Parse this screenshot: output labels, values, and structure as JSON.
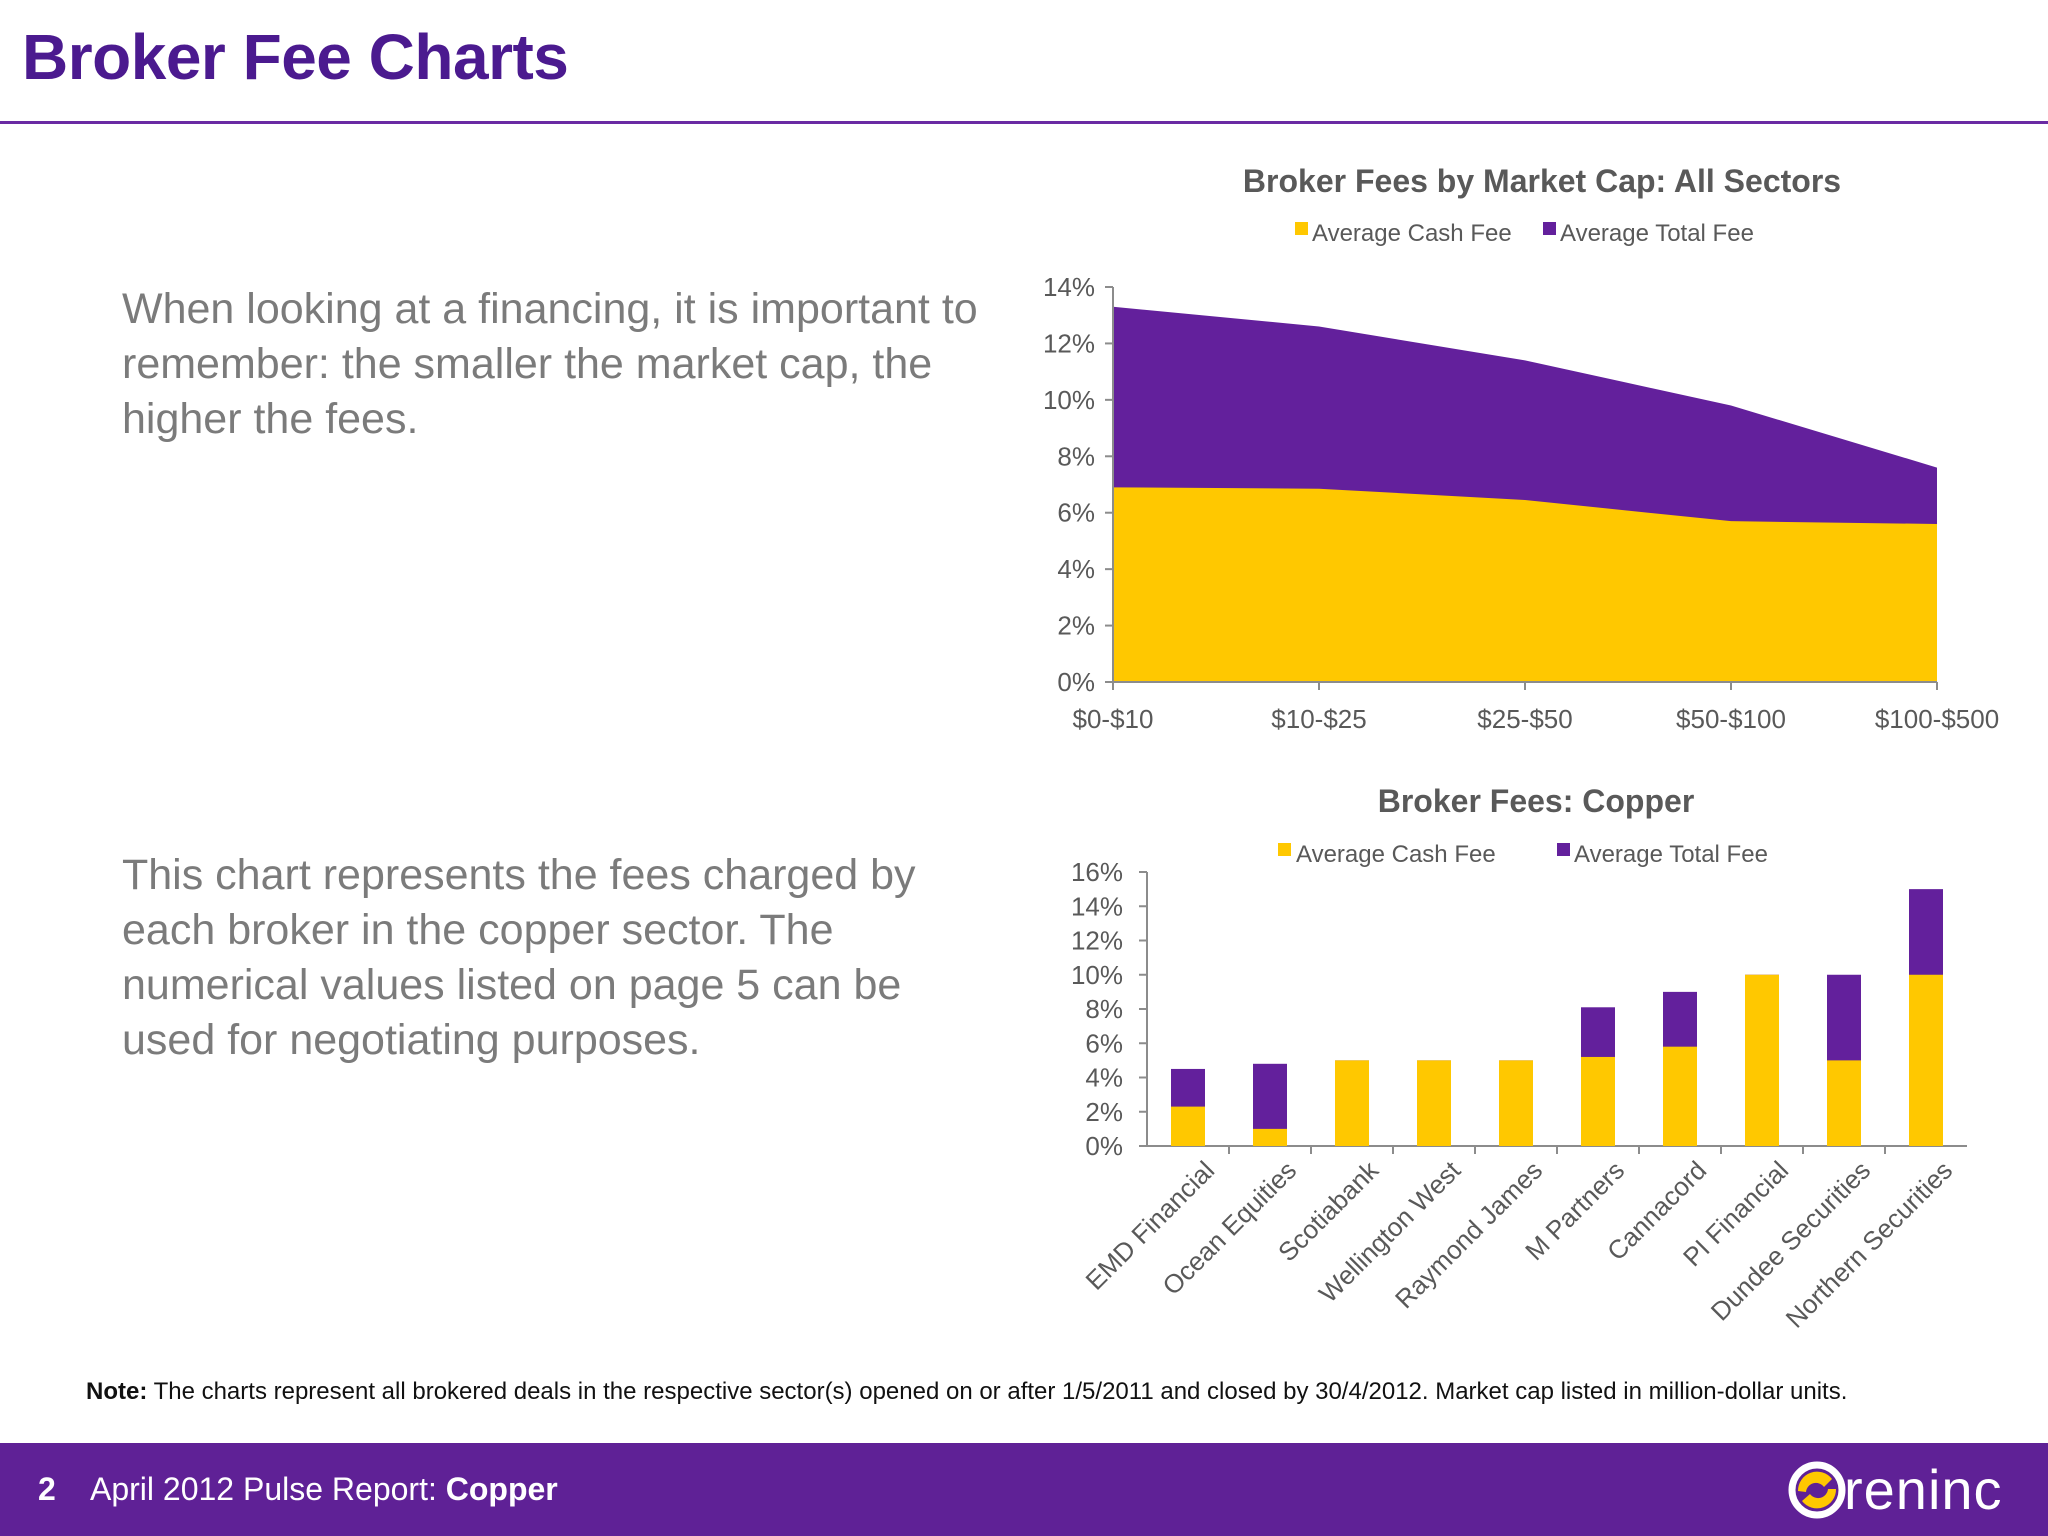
{
  "page": {
    "title": "Broker Fee Charts",
    "paragraph1": "When looking at a financing, it is important to remember: the smaller the market cap, the higher the fees.",
    "paragraph2": "This chart represents the fees charged by each broker in the copper sector. The numerical values listed on page 5 can be used for negotiating purposes.",
    "note_label": "Note:",
    "note_text": " The charts represent all brokered deals in the respective sector(s) opened on or after 1/5/2011 and closed by 30/4/2012. Market cap listed in million-dollar units."
  },
  "footer": {
    "page_number": "2",
    "report_prefix": "April 2012 Pulse Report: ",
    "report_sector": "Copper",
    "logo_text": "reninc"
  },
  "colors": {
    "cash": "#ffc800",
    "total": "#63209c",
    "title": "#4b1a8f",
    "footer": "#5f2196"
  },
  "chart_data": [
    {
      "type": "area",
      "title": "Broker Fees by Market Cap: All Sectors",
      "categories": [
        "$0-$10",
        "$10-$25",
        "$25-$50",
        "$50-$100",
        "$100-$500"
      ],
      "series": [
        {
          "name": "Average Cash Fee",
          "values": [
            6.9,
            6.85,
            6.45,
            5.7,
            5.6
          ]
        },
        {
          "name": "Average Total Fee",
          "values": [
            13.3,
            12.6,
            11.4,
            9.8,
            7.6
          ]
        }
      ],
      "yticks": [
        "0%",
        "2%",
        "4%",
        "6%",
        "8%",
        "10%",
        "12%",
        "14%"
      ],
      "ylim": [
        0,
        14
      ],
      "legend": "top"
    },
    {
      "type": "bar",
      "title": "Broker Fees: Copper",
      "categories": [
        "EMD Financial",
        "Ocean Equities",
        "Scotiabank",
        "Wellington West",
        "Raymond James",
        "M Partners",
        "Cannacord",
        "PI Financial",
        "Dundee Securities",
        "Northern Securities"
      ],
      "series": [
        {
          "name": "Average Cash Fee",
          "values": [
            2.3,
            1.0,
            5.0,
            5.0,
            5.0,
            5.2,
            5.8,
            10.0,
            5.0,
            10.0
          ]
        },
        {
          "name": "Average Total Fee",
          "values": [
            4.5,
            4.8,
            5.0,
            5.0,
            5.0,
            8.1,
            9.0,
            10.0,
            10.0,
            15.0
          ]
        }
      ],
      "yticks": [
        "0%",
        "2%",
        "4%",
        "6%",
        "8%",
        "10%",
        "12%",
        "14%",
        "16%"
      ],
      "ylim": [
        0,
        16
      ],
      "legend": "top"
    }
  ]
}
